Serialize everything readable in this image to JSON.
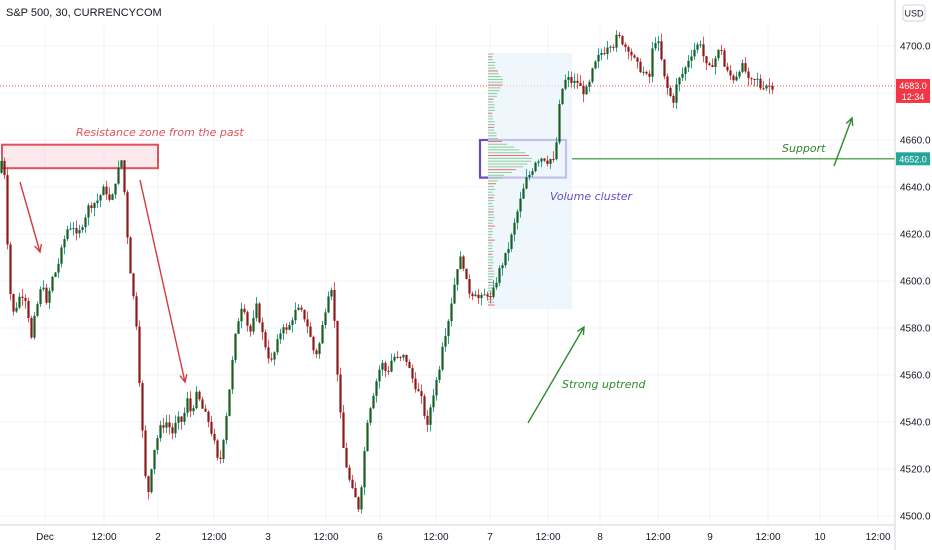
{
  "header": {
    "symbol_label": "S&P 500, 30, CURRENCYCOM",
    "currency_button": "USD"
  },
  "chart_data": {
    "type": "candlestick",
    "title": "S&P 500, 30, CURRENCYCOM",
    "ylim": [
      4497,
      4717
    ],
    "y_ticks": [
      4500,
      4520,
      4540,
      4560,
      4580,
      4600,
      4620,
      4640,
      4660,
      4680,
      4700
    ],
    "y_tick_labels": [
      "4500.0",
      "4520.0",
      "4540.0",
      "4560.0",
      "4580.0",
      "4600.0",
      "4620.0",
      "4640.0",
      "4660.0",
      "4680.0",
      "4700.0"
    ],
    "x_tick_labels": [
      "Dec",
      "12:00",
      "2",
      "12:00",
      "3",
      "12:00",
      "6",
      "12:00",
      "7",
      "12:00",
      "8",
      "12:00",
      "9",
      "12:00",
      "10",
      "12:00"
    ],
    "grid": true,
    "price_path": [
      [
        0,
        4646
      ],
      [
        4,
        4652
      ],
      [
        8,
        4645
      ],
      [
        12,
        4600
      ],
      [
        16,
        4586
      ],
      [
        20,
        4590
      ],
      [
        24,
        4595
      ],
      [
        30,
        4592
      ],
      [
        34,
        4574
      ],
      [
        38,
        4585
      ],
      [
        42,
        4593
      ],
      [
        46,
        4600
      ],
      [
        50,
        4588
      ],
      [
        54,
        4600
      ],
      [
        60,
        4605
      ],
      [
        64,
        4612
      ],
      [
        70,
        4622
      ],
      [
        76,
        4624
      ],
      [
        80,
        4618
      ],
      [
        86,
        4625
      ],
      [
        92,
        4632
      ],
      [
        100,
        4634
      ],
      [
        108,
        4640
      ],
      [
        114,
        4632
      ],
      [
        118,
        4642
      ],
      [
        122,
        4648
      ],
      [
        125,
        4652
      ],
      [
        128,
        4635
      ],
      [
        132,
        4610
      ],
      [
        136,
        4595
      ],
      [
        140,
        4580
      ],
      [
        144,
        4545
      ],
      [
        148,
        4520
      ],
      [
        150,
        4505
      ],
      [
        154,
        4520
      ],
      [
        158,
        4530
      ],
      [
        164,
        4538
      ],
      [
        170,
        4540
      ],
      [
        176,
        4535
      ],
      [
        180,
        4541
      ],
      [
        186,
        4540
      ],
      [
        190,
        4550
      ],
      [
        194,
        4544
      ],
      [
        200,
        4552
      ],
      [
        206,
        4545
      ],
      [
        212,
        4540
      ],
      [
        218,
        4530
      ],
      [
        222,
        4520
      ],
      [
        226,
        4532
      ],
      [
        230,
        4545
      ],
      [
        234,
        4560
      ],
      [
        238,
        4575
      ],
      [
        242,
        4585
      ],
      [
        246,
        4592
      ],
      [
        250,
        4582
      ],
      [
        254,
        4578
      ],
      [
        260,
        4590
      ],
      [
        264,
        4580
      ],
      [
        270,
        4570
      ],
      [
        274,
        4565
      ],
      [
        278,
        4570
      ],
      [
        282,
        4576
      ],
      [
        286,
        4582
      ],
      [
        290,
        4578
      ],
      [
        296,
        4585
      ],
      [
        300,
        4588
      ],
      [
        306,
        4586
      ],
      [
        310,
        4582
      ],
      [
        314,
        4575
      ],
      [
        318,
        4568
      ],
      [
        322,
        4572
      ],
      [
        326,
        4582
      ],
      [
        330,
        4592
      ],
      [
        334,
        4600
      ],
      [
        338,
        4580
      ],
      [
        342,
        4550
      ],
      [
        346,
        4530
      ],
      [
        350,
        4520
      ],
      [
        354,
        4512
      ],
      [
        358,
        4508
      ],
      [
        362,
        4503
      ],
      [
        366,
        4520
      ],
      [
        370,
        4540
      ],
      [
        374,
        4548
      ],
      [
        378,
        4555
      ],
      [
        382,
        4562
      ],
      [
        386,
        4565
      ],
      [
        390,
        4560
      ],
      [
        394,
        4566
      ],
      [
        398,
        4568
      ],
      [
        402,
        4566
      ],
      [
        406,
        4568
      ],
      [
        410,
        4566
      ],
      [
        414,
        4560
      ],
      [
        418,
        4556
      ],
      [
        422,
        4552
      ],
      [
        426,
        4548
      ],
      [
        430,
        4536
      ],
      [
        434,
        4548
      ],
      [
        438,
        4555
      ],
      [
        442,
        4562
      ],
      [
        446,
        4575
      ],
      [
        450,
        4580
      ],
      [
        454,
        4590
      ],
      [
        458,
        4600
      ],
      [
        462,
        4610
      ],
      [
        466,
        4608
      ],
      [
        470,
        4598
      ],
      [
        474,
        4594
      ],
      [
        478,
        4596
      ],
      [
        482,
        4592
      ],
      [
        486,
        4593
      ],
      [
        490,
        4595
      ],
      [
        494,
        4592
      ],
      [
        498,
        4598
      ],
      [
        502,
        4604
      ],
      [
        506,
        4608
      ],
      [
        510,
        4612
      ],
      [
        514,
        4618
      ],
      [
        518,
        4625
      ],
      [
        522,
        4632
      ],
      [
        526,
        4638
      ],
      [
        530,
        4644
      ],
      [
        534,
        4646
      ],
      [
        538,
        4651
      ],
      [
        542,
        4652
      ],
      [
        546,
        4653
      ],
      [
        550,
        4651
      ],
      [
        554,
        4652
      ],
      [
        558,
        4650
      ],
      [
        561,
        4668
      ],
      [
        564,
        4680
      ],
      [
        568,
        4685
      ],
      [
        572,
        4686
      ],
      [
        576,
        4684
      ],
      [
        580,
        4685
      ],
      [
        584,
        4682
      ],
      [
        588,
        4680
      ],
      [
        592,
        4683
      ],
      [
        596,
        4690
      ],
      [
        600,
        4694
      ],
      [
        604,
        4697
      ],
      [
        608,
        4698
      ],
      [
        612,
        4702
      ],
      [
        616,
        4700
      ],
      [
        620,
        4704
      ],
      [
        624,
        4703
      ],
      [
        628,
        4700
      ],
      [
        632,
        4699
      ],
      [
        636,
        4695
      ],
      [
        640,
        4692
      ],
      [
        644,
        4690
      ],
      [
        648,
        4688
      ],
      [
        652,
        4685
      ],
      [
        656,
        4700
      ],
      [
        660,
        4704
      ],
      [
        664,
        4695
      ],
      [
        668,
        4685
      ],
      [
        672,
        4680
      ],
      [
        676,
        4676
      ],
      [
        680,
        4684
      ],
      [
        684,
        4687
      ],
      [
        688,
        4690
      ],
      [
        692,
        4695
      ],
      [
        696,
        4698
      ],
      [
        700,
        4700
      ],
      [
        704,
        4702
      ],
      [
        708,
        4692
      ],
      [
        712,
        4690
      ],
      [
        716,
        4693
      ],
      [
        720,
        4696
      ],
      [
        724,
        4700
      ],
      [
        728,
        4690
      ],
      [
        732,
        4688
      ],
      [
        736,
        4686
      ],
      [
        740,
        4688
      ],
      [
        744,
        4692
      ],
      [
        748,
        4690
      ],
      [
        752,
        4684
      ],
      [
        756,
        4685
      ],
      [
        760,
        4686
      ],
      [
        764,
        4682
      ],
      [
        768,
        4684
      ],
      [
        772,
        4683
      ]
    ],
    "price_labels": [
      {
        "text": "4683.0",
        "sub": "12:34",
        "value": 4683,
        "color": "#f23645"
      },
      {
        "text": "4652.0",
        "sub": "",
        "value": 4652,
        "color": "#26a69a"
      }
    ],
    "annotations": {
      "resistance": "Resistance zone from the past",
      "volume_cluster": "Volume cluster",
      "support": "Support",
      "strong_uptrend": "Strong uptrend"
    },
    "resistance_zone": {
      "from_value": 4648,
      "to_value": 4658
    },
    "volume_cluster_zone": {
      "from_value": 4644,
      "to_value": 4660
    },
    "support_level": 4652,
    "colors": {
      "up": "#26a69a",
      "down": "#ef5350",
      "candle_up_body": "#1b5e20",
      "candle_down_body": "#8b1a1a",
      "resistance": "#e0525a",
      "support": "#2e8b2e",
      "cluster": "#6a4bc4",
      "arrow_red": "#d33b3b",
      "arrow_green": "#2e8b2e"
    }
  }
}
